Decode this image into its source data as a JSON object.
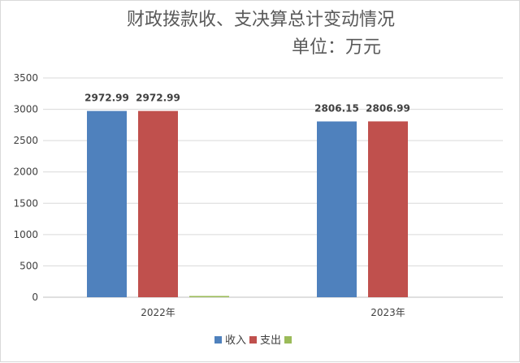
{
  "chart_data": {
    "type": "bar",
    "title": "财政拨款收、支决算总计变动情况",
    "subtitle": "单位：万元",
    "categories": [
      "2022年",
      "2023年"
    ],
    "series": [
      {
        "name": "收入",
        "color": "#4f81bd",
        "values": [
          2972.99,
          2806.15
        ],
        "labels": [
          "2972.99",
          "2806.15"
        ]
      },
      {
        "name": "支出",
        "color": "#c0504d",
        "values": [
          2972.99,
          2806.99
        ],
        "labels": [
          "2972.99",
          "2806.99"
        ]
      },
      {
        "name": "",
        "color": "#9bbb59",
        "values": [
          20,
          0
        ],
        "labels": [
          "",
          ""
        ]
      }
    ],
    "ylim": [
      0,
      3500
    ],
    "yticks": [
      0,
      500,
      1000,
      1500,
      2000,
      2500,
      3000,
      3500
    ],
    "grid": true,
    "legend": "bottom"
  }
}
